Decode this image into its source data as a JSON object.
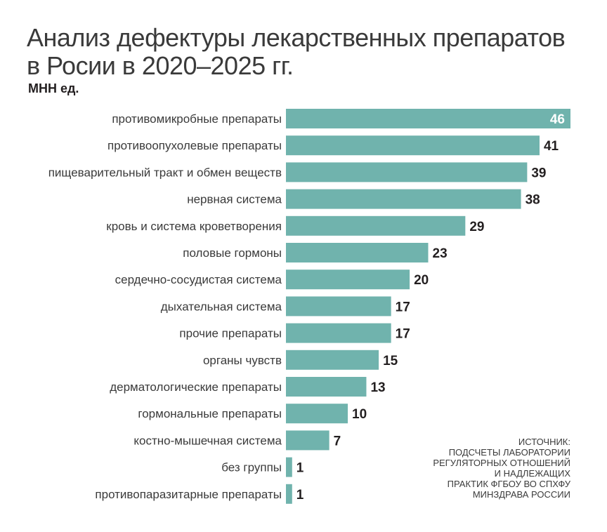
{
  "title_lines": [
    "Анализ дефектуры лекарственных препаратов",
    "в Росии в 2020–2025 гг."
  ],
  "subtitle": "МНН ед.",
  "source_lines": [
    "ИСТОЧНИК:",
    "ПОДСЧЕТЫ ЛАБОРАТОРИИ",
    "РЕГУЛЯТОРНЫХ ОТНОШЕНИЙ",
    "И НАДЛЕЖАЩИХ",
    "ПРАКТИК ФГБОУ ВО СПХФУ",
    "МИНЗДРАВА РОССИИ"
  ],
  "colors": {
    "bar": "#70b3ad",
    "label": "#231f20",
    "label_inside": "#ffffff"
  },
  "chart_data": {
    "type": "bar",
    "orientation": "horizontal",
    "categories": [
      "противомикробные препараты",
      "противоопухолевые препараты",
      "пищеварительный тракт и обмен веществ",
      "нервная система",
      "кровь и система кроветворения",
      "половые гормоны",
      "сердечно-сосудистая система",
      "дыхательная система",
      "прочие препараты",
      "органы чувств",
      "дерматологические препараты",
      "гормональные препараты",
      "костно-мышечная система",
      "без группы",
      "противопаразитарные препараты"
    ],
    "values": [
      46,
      41,
      39,
      38,
      29,
      23,
      20,
      17,
      17,
      15,
      13,
      10,
      7,
      1,
      1
    ],
    "title": "Анализ дефектуры лекарственных препаратов в Росии в 2020–2025 гг.",
    "ylabel": "МНН ед.",
    "xlim": [
      0,
      46
    ],
    "grid": false,
    "legend": "none"
  }
}
